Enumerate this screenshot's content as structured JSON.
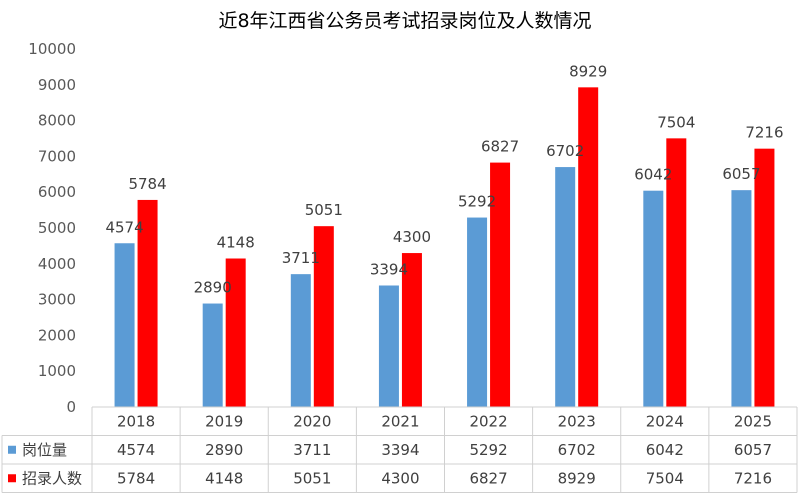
{
  "chart_data": {
    "type": "bar",
    "title": "近8年江西省公务员考试招录岗位及人数情况",
    "categories": [
      "2018",
      "2019",
      "2020",
      "2021",
      "2022",
      "2023",
      "2024",
      "2025"
    ],
    "series": [
      {
        "name": "岗位量",
        "color": "#5B9BD5",
        "values": [
          4574,
          2890,
          3711,
          3394,
          5292,
          6702,
          6042,
          6057
        ]
      },
      {
        "name": "招录人数",
        "color": "#FF0000",
        "values": [
          5784,
          4148,
          5051,
          4300,
          6827,
          8929,
          7504,
          7216
        ]
      }
    ],
    "yticks": [
      "0",
      "1000",
      "2000",
      "3000",
      "4000",
      "5000",
      "6000",
      "7000",
      "8000",
      "9000",
      "10000"
    ],
    "ylim": [
      0,
      10000
    ],
    "grid": false,
    "legend": "data-table",
    "data_table": true
  }
}
